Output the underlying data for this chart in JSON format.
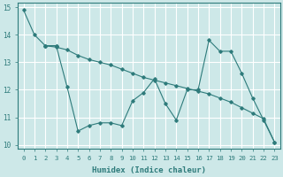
{
  "xlabel": "Humidex (Indice chaleur)",
  "bg_color": "#cde8e8",
  "grid_color": "#ffffff",
  "line_color": "#2e7b7b",
  "xlim": [
    -0.5,
    23.5
  ],
  "ylim": [
    9.85,
    15.15
  ],
  "yticks": [
    10,
    11,
    12,
    13,
    14,
    15
  ],
  "xticks": [
    0,
    1,
    2,
    3,
    4,
    5,
    6,
    7,
    8,
    9,
    10,
    11,
    12,
    13,
    14,
    15,
    16,
    17,
    18,
    19,
    20,
    21,
    22,
    23
  ],
  "lines": [
    {
      "x": [
        0,
        1,
        2,
        3
      ],
      "y": [
        14.9,
        14.0,
        13.6,
        13.6
      ]
    },
    {
      "x": [
        2,
        3,
        4,
        5,
        6,
        7,
        8,
        9,
        10,
        11,
        12,
        13,
        14,
        15,
        16,
        17,
        18,
        19,
        20,
        21,
        22,
        23
      ],
      "y": [
        13.6,
        13.55,
        13.45,
        13.25,
        13.1,
        13.0,
        12.9,
        12.75,
        12.6,
        12.45,
        12.35,
        12.25,
        12.15,
        12.05,
        11.95,
        11.85,
        11.7,
        11.55,
        11.35,
        11.15,
        10.95,
        10.1
      ]
    },
    {
      "x": [
        2,
        3,
        4,
        5,
        6,
        7,
        8,
        9,
        10,
        11,
        12,
        13,
        14,
        15,
        16,
        17,
        18,
        19,
        20,
        21,
        22,
        23
      ],
      "y": [
        13.6,
        13.6,
        12.1,
        10.5,
        10.7,
        10.8,
        10.8,
        10.7,
        11.6,
        11.9,
        12.4,
        11.5,
        10.9,
        12.0,
        12.0,
        13.8,
        13.4,
        13.4,
        12.6,
        11.7,
        10.9,
        10.1
      ]
    }
  ]
}
